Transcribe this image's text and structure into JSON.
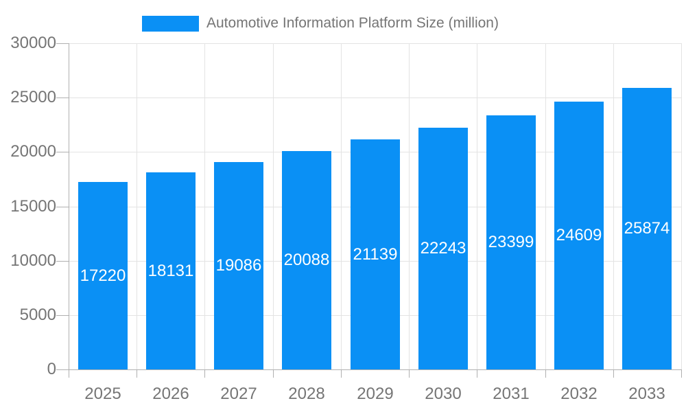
{
  "chart_data": {
    "type": "bar",
    "title": "Automotive Information Platform Size (million)",
    "categories": [
      "2025",
      "2026",
      "2027",
      "2028",
      "2029",
      "2030",
      "2031",
      "2032",
      "2033"
    ],
    "values": [
      17220,
      18131,
      19086,
      20088,
      21139,
      22243,
      23399,
      24609,
      25874
    ],
    "xlabel": "",
    "ylabel": "",
    "ylim": [
      0,
      30000
    ],
    "yticks": [
      0,
      5000,
      10000,
      15000,
      20000,
      25000,
      30000
    ],
    "grid": true,
    "legend_position": "top",
    "bar_color": "#0a90f5",
    "value_label_color": "#ffffff",
    "axis_text_color": "#757575",
    "grid_color": "#e3e3e3",
    "axis_line_color": "#b0b0b0"
  }
}
